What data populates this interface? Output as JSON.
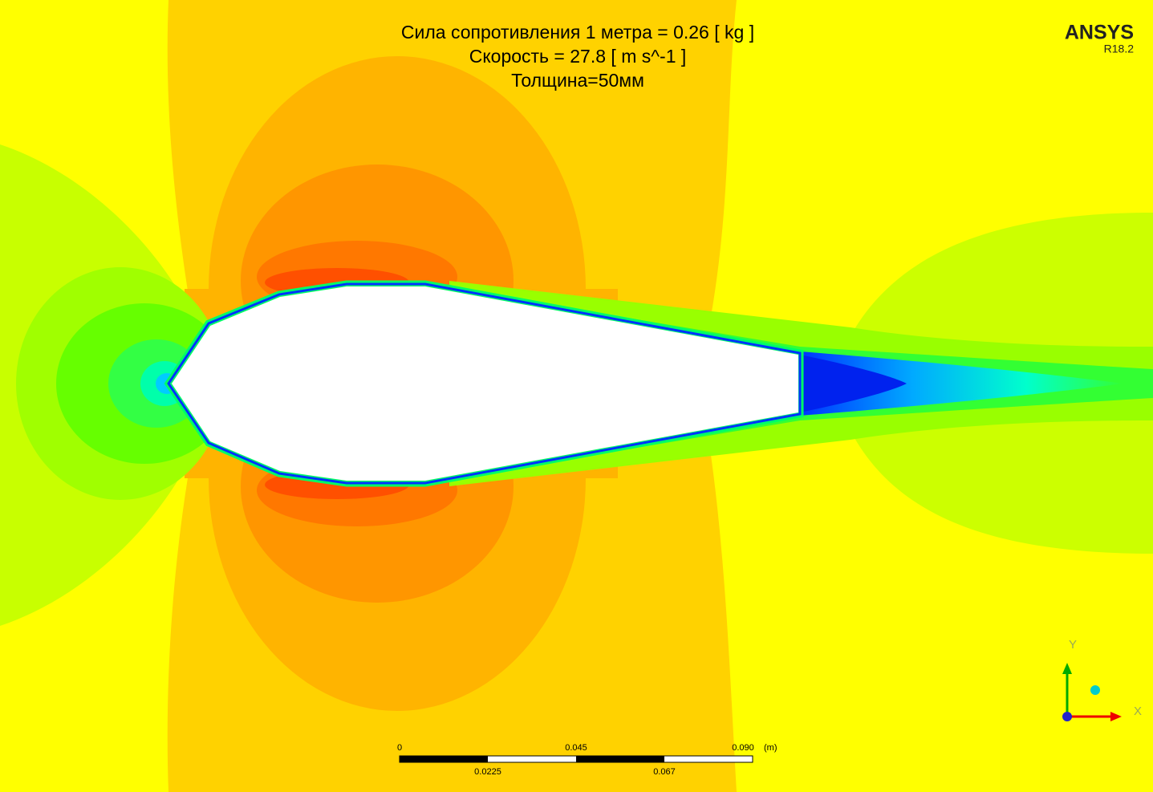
{
  "header": {
    "lines": [
      "Сила сопротивления 1 метра = 0.26 [ kg ]",
      "Скорость = 27.8 [ m s^-1 ]",
      "Толщина=50мм"
    ],
    "logo": "ANSYS",
    "version": "R18.2"
  },
  "scale_bar": {
    "top_labels": [
      "0",
      "0.045",
      "0.090"
    ],
    "unit": "(m)",
    "bottom_labels": [
      "0.0225",
      "0.067"
    ]
  },
  "axes": {
    "y": "Y",
    "x": "X"
  }
}
